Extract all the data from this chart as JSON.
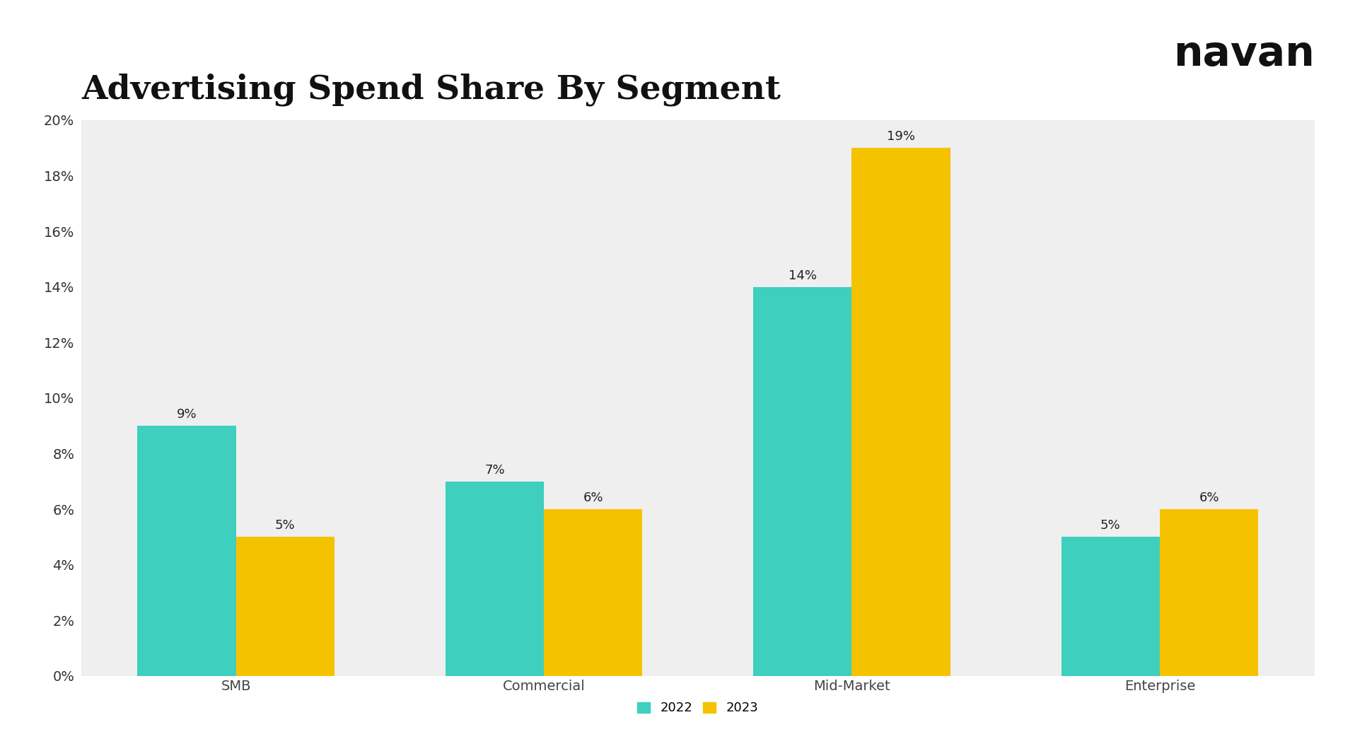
{
  "title": "Advertising Spend Share By Segment",
  "categories": [
    "SMB",
    "Commercial",
    "Mid-Market",
    "Enterprise"
  ],
  "values_2022": [
    9,
    7,
    14,
    5
  ],
  "values_2023": [
    5,
    6,
    19,
    6
  ],
  "color_2022": "#3ECFBE",
  "color_2023": "#F5C200",
  "background_color": "#FFFFFF",
  "plot_background_color": "#EFEFEF",
  "title_fontsize": 34,
  "label_fontsize": 14,
  "tick_fontsize": 14,
  "bar_label_fontsize": 13,
  "legend_fontsize": 13,
  "ylim": [
    0,
    20
  ],
  "yticks": [
    0,
    2,
    4,
    6,
    8,
    10,
    12,
    14,
    16,
    18,
    20
  ],
  "bar_width": 0.32,
  "legend_labels": [
    "2022",
    "2023"
  ],
  "navan_text": "navan",
  "navan_fontsize": 42
}
